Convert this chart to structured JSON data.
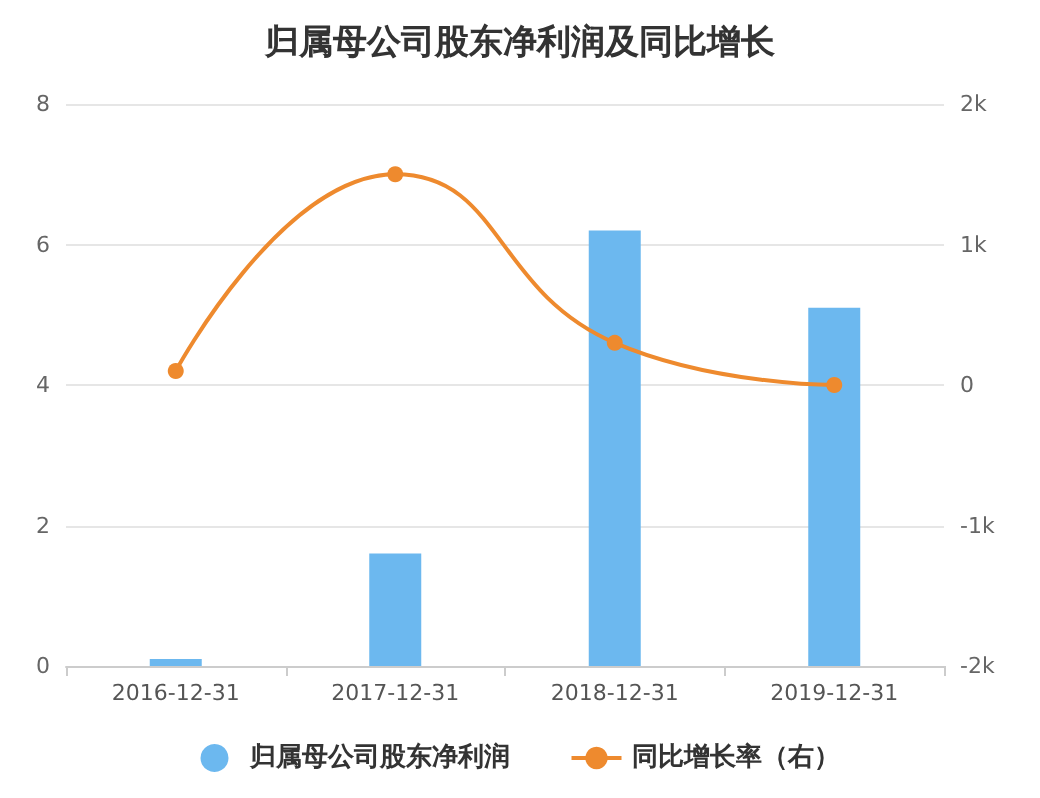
{
  "chart_data": {
    "type": "bar",
    "title": "归属母公司股东净利润及同比增长",
    "categories": [
      "2016-12-31",
      "2017-12-31",
      "2018-12-31",
      "2019-12-31"
    ],
    "series": [
      {
        "name": "归属母公司股东净利润",
        "color": "#6cb8ef",
        "values": [
          0.1,
          1.6,
          6.2,
          5.1
        ]
      },
      {
        "name": "同比增长率（右）",
        "type": "line",
        "axis": "y2",
        "color": "#ee8a2e",
        "values": [
          100,
          1500,
          300,
          0
        ]
      }
    ],
    "ylim": [
      0,
      8
    ],
    "yticks": [
      0,
      2,
      4,
      6,
      8
    ],
    "y2lim": [
      -2000,
      2000
    ],
    "y2ticks": [
      {
        "value": -2000,
        "label": "-2k"
      },
      {
        "value": -1000,
        "label": "-1k"
      },
      0,
      {
        "value": 1000,
        "label": "1k"
      },
      {
        "value": 2000,
        "label": "2k"
      }
    ],
    "grid": "y",
    "legend": "bottom",
    "marker": "circle"
  }
}
